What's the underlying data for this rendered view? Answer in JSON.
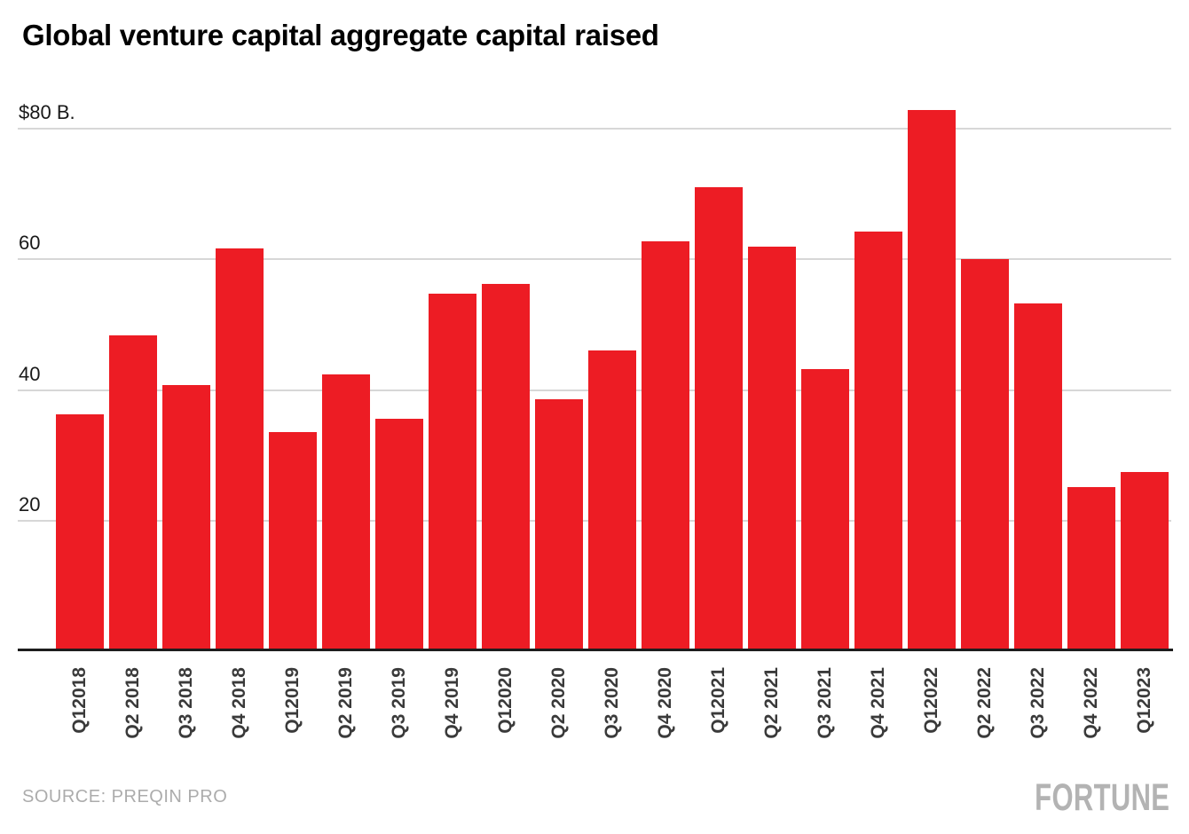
{
  "title": "Global venture capital aggregate capital raised",
  "source": "SOURCE: PREQIN PRO",
  "brand": "FORTUNE",
  "colors": {
    "bar": "#ed1c24",
    "gridline": "#d7d7d7",
    "axis_line": "#1d1d1d",
    "x_tick_text": "#3a3a3a",
    "y_tick_text": "#191919",
    "muted_text": "#acacac",
    "brand_text": "#b3b3b3",
    "background": "#ffffff"
  },
  "chart_data": {
    "type": "bar",
    "title": "Global venture capital aggregate capital raised",
    "unit": "billions of U.S. dollars",
    "categories": [
      "Q12018",
      "Q2 2018",
      "Q3 2018",
      "Q4 2018",
      "Q12019",
      "Q2 2019",
      "Q3 2019",
      "Q4 2019",
      "Q12020",
      "Q2 2020",
      "Q3 2020",
      "Q4 2020",
      "Q12021",
      "Q2 2021",
      "Q3 2021",
      "Q4 2021",
      "Q12022",
      "Q2 2022",
      "Q3 2022",
      "Q4 2022",
      "Q12023"
    ],
    "values": [
      36.3,
      48.4,
      40.8,
      61.6,
      33.6,
      42.4,
      35.6,
      54.8,
      56.3,
      38.6,
      46.1,
      62.7,
      71.1,
      62.0,
      43.2,
      64.2,
      82.9,
      60.1,
      53.2,
      25.1,
      27.4
    ],
    "y_ticks": [
      {
        "label": "$80 B.",
        "value": 80
      },
      {
        "label": "60",
        "value": 60
      },
      {
        "label": "40",
        "value": 40
      },
      {
        "label": "20",
        "value": 20
      }
    ],
    "ylim": [
      0,
      80
    ],
    "grid": true,
    "legend": "none",
    "xlabel": "",
    "ylabel": "",
    "source": "SOURCE: PREQIN PRO"
  }
}
